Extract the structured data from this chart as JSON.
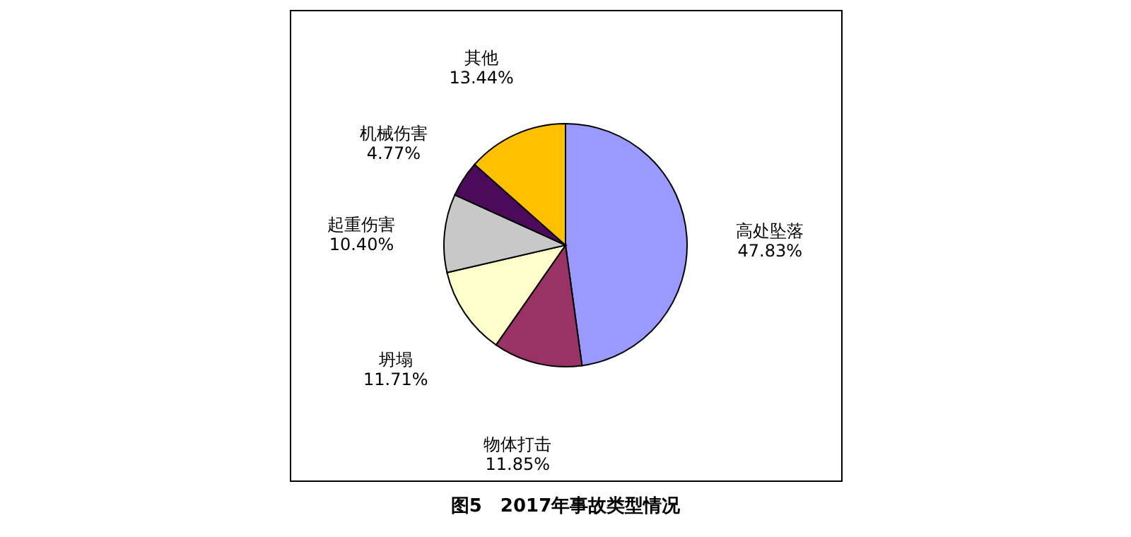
{
  "chart_data": {
    "type": "pie",
    "title": "图5　2017年事故类型情况",
    "categories": [
      "高处坠落",
      "物体打击",
      "坍塌",
      "起重伤害",
      "机械伤害",
      "其他"
    ],
    "values": [
      47.83,
      11.85,
      11.71,
      10.4,
      4.77,
      13.44
    ],
    "value_labels": [
      "47.83%",
      "11.85%",
      "11.71%",
      "10.40%",
      "4.77%",
      "13.44%"
    ],
    "colors": [
      "#9999ff",
      "#993366",
      "#ffffcc",
      "#c8c8c8",
      "#4b0a5a",
      "#ffc000"
    ]
  }
}
